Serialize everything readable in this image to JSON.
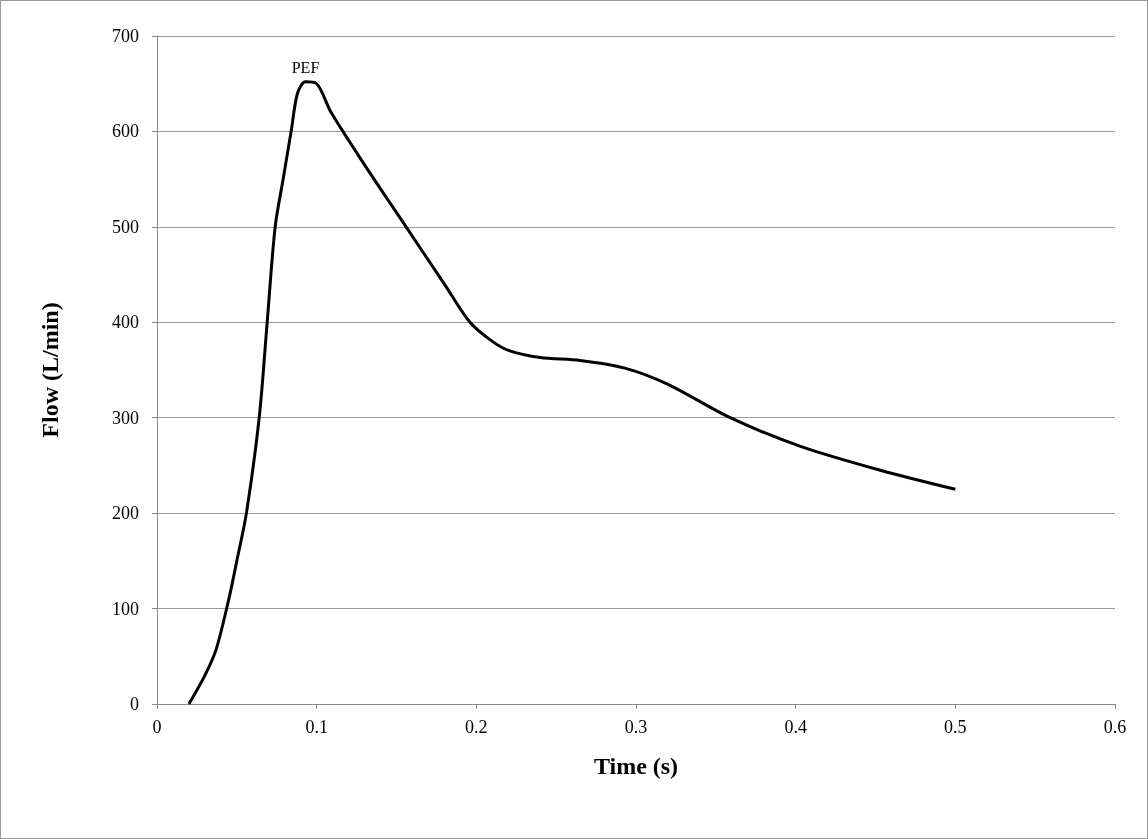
{
  "chart_data": {
    "type": "line",
    "xlabel": "Time (s)",
    "ylabel": "Flow (L/min)",
    "x": [
      0.02,
      0.03,
      0.037,
      0.045,
      0.05,
      0.056,
      0.064,
      0.069,
      0.074,
      0.079,
      0.084,
      0.088,
      0.093,
      0.1,
      0.109,
      0.13,
      0.156,
      0.18,
      0.196,
      0.21,
      0.221,
      0.24,
      0.265,
      0.293,
      0.32,
      0.359,
      0.403,
      0.453,
      0.5
    ],
    "series": [
      {
        "color": "#000000",
        "values": [
          0,
          30,
          57,
          110,
          150,
          200,
          300,
          400,
          500,
          550,
          600,
          640,
          652,
          650,
          620,
          565,
          500,
          440,
          400,
          380,
          370,
          363,
          360,
          352,
          335,
          300,
          270,
          245,
          225
        ]
      }
    ],
    "xlim": [
      0,
      0.6
    ],
    "xticks": [
      0,
      0.1,
      0.2,
      0.3,
      0.4,
      0.5,
      0.6
    ],
    "ylim": [
      0,
      700
    ],
    "yticks": [
      0,
      100,
      200,
      300,
      400,
      500,
      600,
      700
    ],
    "grid": "y",
    "marker": "none",
    "line_style": "solid",
    "annotations": [
      {
        "text": "PEF",
        "x": 0.093,
        "y": 652
      }
    ]
  }
}
